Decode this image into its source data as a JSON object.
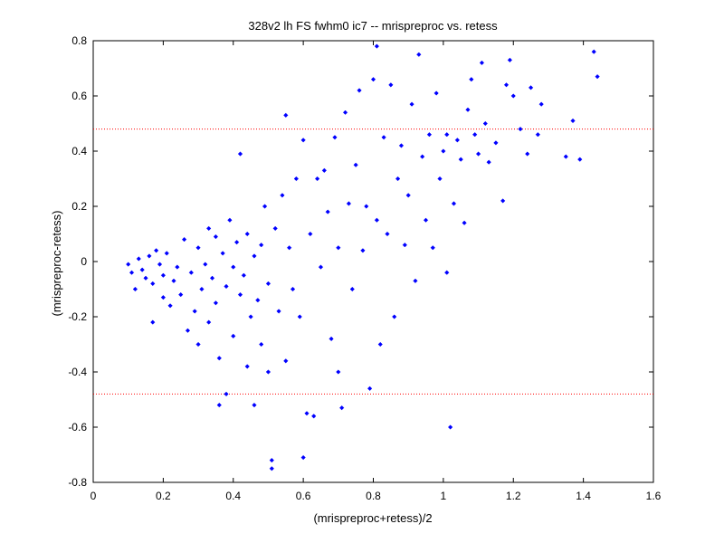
{
  "chart_data": {
    "type": "scatter",
    "title": "328v2 lh FS fwhm0 ic7 -- mrispreproc vs. retess",
    "xlabel": "(mrispreproc+retess)/2",
    "ylabel": "(mrispreproc-retess)",
    "xlim": [
      0,
      1.6
    ],
    "ylim": [
      -0.8,
      0.8
    ],
    "xticks": [
      "0",
      "0.2",
      "0.4",
      "0.6",
      "0.8",
      "1",
      "1.2",
      "1.4",
      "1.6"
    ],
    "yticks": [
      "-0.8",
      "-0.6",
      "-0.4",
      "-0.2",
      "0",
      "0.2",
      "0.4",
      "0.6",
      "0.8"
    ],
    "grid": false,
    "marker_color": "#0000ff",
    "reference_line_color": "#ff0000",
    "reference_lines": [
      0.48,
      -0.48
    ],
    "series": [
      {
        "points": [
          [
            0.1,
            -0.01
          ],
          [
            0.11,
            -0.04
          ],
          [
            0.12,
            -0.1
          ],
          [
            0.13,
            0.01
          ],
          [
            0.14,
            -0.03
          ],
          [
            0.15,
            -0.06
          ],
          [
            0.16,
            0.02
          ],
          [
            0.17,
            -0.08
          ],
          [
            0.17,
            -0.22
          ],
          [
            0.18,
            0.04
          ],
          [
            0.19,
            -0.01
          ],
          [
            0.2,
            -0.05
          ],
          [
            0.2,
            -0.13
          ],
          [
            0.21,
            0.03
          ],
          [
            0.22,
            -0.16
          ],
          [
            0.23,
            -0.07
          ],
          [
            0.24,
            -0.02
          ],
          [
            0.25,
            -0.12
          ],
          [
            0.26,
            0.08
          ],
          [
            0.27,
            -0.25
          ],
          [
            0.28,
            -0.04
          ],
          [
            0.29,
            -0.18
          ],
          [
            0.3,
            0.05
          ],
          [
            0.3,
            -0.3
          ],
          [
            0.31,
            -0.1
          ],
          [
            0.32,
            -0.01
          ],
          [
            0.33,
            0.12
          ],
          [
            0.33,
            -0.22
          ],
          [
            0.34,
            -0.06
          ],
          [
            0.35,
            0.09
          ],
          [
            0.35,
            -0.15
          ],
          [
            0.36,
            -0.35
          ],
          [
            0.36,
            -0.52
          ],
          [
            0.37,
            0.03
          ],
          [
            0.38,
            -0.09
          ],
          [
            0.38,
            -0.48
          ],
          [
            0.39,
            0.15
          ],
          [
            0.4,
            -0.02
          ],
          [
            0.4,
            -0.27
          ],
          [
            0.41,
            0.07
          ],
          [
            0.42,
            -0.12
          ],
          [
            0.42,
            0.39
          ],
          [
            0.43,
            -0.05
          ],
          [
            0.44,
            0.1
          ],
          [
            0.44,
            -0.38
          ],
          [
            0.45,
            -0.2
          ],
          [
            0.46,
            0.02
          ],
          [
            0.46,
            -0.52
          ],
          [
            0.47,
            -0.14
          ],
          [
            0.48,
            0.06
          ],
          [
            0.48,
            -0.3
          ],
          [
            0.49,
            0.2
          ],
          [
            0.5,
            -0.08
          ],
          [
            0.5,
            -0.4
          ],
          [
            0.51,
            -0.72
          ],
          [
            0.51,
            -0.75
          ],
          [
            0.52,
            0.12
          ],
          [
            0.53,
            -0.18
          ],
          [
            0.54,
            0.24
          ],
          [
            0.55,
            0.53
          ],
          [
            0.55,
            -0.36
          ],
          [
            0.56,
            0.05
          ],
          [
            0.57,
            -0.1
          ],
          [
            0.58,
            0.3
          ],
          [
            0.59,
            -0.2
          ],
          [
            0.6,
            0.44
          ],
          [
            0.6,
            -0.71
          ],
          [
            0.61,
            -0.55
          ],
          [
            0.62,
            0.1
          ],
          [
            0.63,
            -0.56
          ],
          [
            0.64,
            0.3
          ],
          [
            0.65,
            -0.02
          ],
          [
            0.66,
            0.33
          ],
          [
            0.67,
            0.18
          ],
          [
            0.68,
            -0.28
          ],
          [
            0.69,
            0.45
          ],
          [
            0.7,
            0.05
          ],
          [
            0.7,
            -0.4
          ],
          [
            0.71,
            -0.53
          ],
          [
            0.72,
            0.54
          ],
          [
            0.73,
            0.21
          ],
          [
            0.74,
            -0.1
          ],
          [
            0.75,
            0.35
          ],
          [
            0.76,
            0.62
          ],
          [
            0.77,
            0.04
          ],
          [
            0.78,
            0.2
          ],
          [
            0.79,
            -0.46
          ],
          [
            0.8,
            0.66
          ],
          [
            0.81,
            0.15
          ],
          [
            0.81,
            0.78
          ],
          [
            0.82,
            -0.3
          ],
          [
            0.83,
            0.45
          ],
          [
            0.84,
            0.1
          ],
          [
            0.85,
            0.64
          ],
          [
            0.86,
            -0.2
          ],
          [
            0.87,
            0.3
          ],
          [
            0.88,
            0.42
          ],
          [
            0.89,
            0.06
          ],
          [
            0.9,
            0.24
          ],
          [
            0.91,
            0.57
          ],
          [
            0.92,
            -0.07
          ],
          [
            0.93,
            0.75
          ],
          [
            0.94,
            0.38
          ],
          [
            0.95,
            0.15
          ],
          [
            0.96,
            0.46
          ],
          [
            0.97,
            0.05
          ],
          [
            0.98,
            0.61
          ],
          [
            0.99,
            0.3
          ],
          [
            1.0,
            0.4
          ],
          [
            1.01,
            0.46
          ],
          [
            1.01,
            -0.04
          ],
          [
            1.02,
            -0.6
          ],
          [
            1.03,
            0.21
          ],
          [
            1.04,
            0.44
          ],
          [
            1.05,
            0.37
          ],
          [
            1.06,
            0.14
          ],
          [
            1.07,
            0.55
          ],
          [
            1.08,
            0.66
          ],
          [
            1.09,
            0.46
          ],
          [
            1.1,
            0.39
          ],
          [
            1.11,
            0.72
          ],
          [
            1.12,
            0.5
          ],
          [
            1.13,
            0.36
          ],
          [
            1.15,
            0.43
          ],
          [
            1.17,
            0.22
          ],
          [
            1.18,
            0.64
          ],
          [
            1.19,
            0.73
          ],
          [
            1.2,
            0.6
          ],
          [
            1.22,
            0.48
          ],
          [
            1.24,
            0.39
          ],
          [
            1.25,
            0.63
          ],
          [
            1.27,
            0.46
          ],
          [
            1.28,
            0.57
          ],
          [
            1.35,
            0.38
          ],
          [
            1.37,
            0.51
          ],
          [
            1.39,
            0.37
          ],
          [
            1.43,
            0.76
          ],
          [
            1.44,
            0.67
          ]
        ]
      }
    ]
  }
}
